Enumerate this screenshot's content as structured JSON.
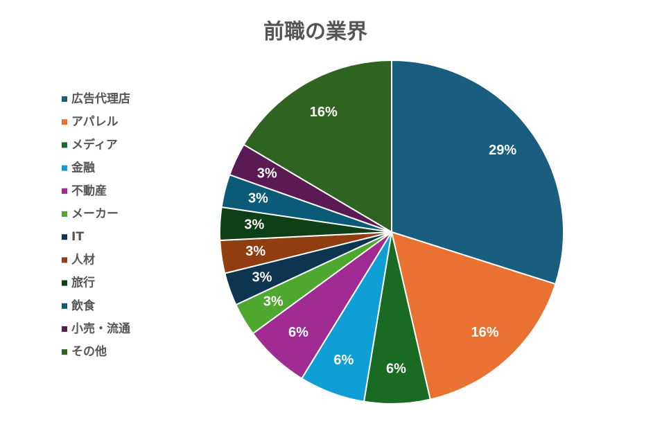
{
  "chart_data": {
    "type": "pie",
    "title": "前職の業界",
    "categories": [
      "広告代理店",
      "アパレル",
      "メディア",
      "金融",
      "不動産",
      "メーカー",
      "IT",
      "人材",
      "旅行",
      "飲食",
      "小売・流通",
      "その他"
    ],
    "values": [
      29,
      16,
      6,
      6,
      6,
      3,
      3,
      3,
      3,
      3,
      3,
      16
    ],
    "value_labels": [
      "29%",
      "16%",
      "6%",
      "6%",
      "6%",
      "3%",
      "3%",
      "3%",
      "3%",
      "3%",
      "3%",
      "16%"
    ],
    "colors": [
      "#195e7f",
      "#e97132",
      "#196b24",
      "#0f9ed5",
      "#a02b93",
      "#4ea72e",
      "#0e3550",
      "#913d12",
      "#0f3f16",
      "#0b5a78",
      "#5a1a54",
      "#2f6321"
    ],
    "legend": "left"
  }
}
